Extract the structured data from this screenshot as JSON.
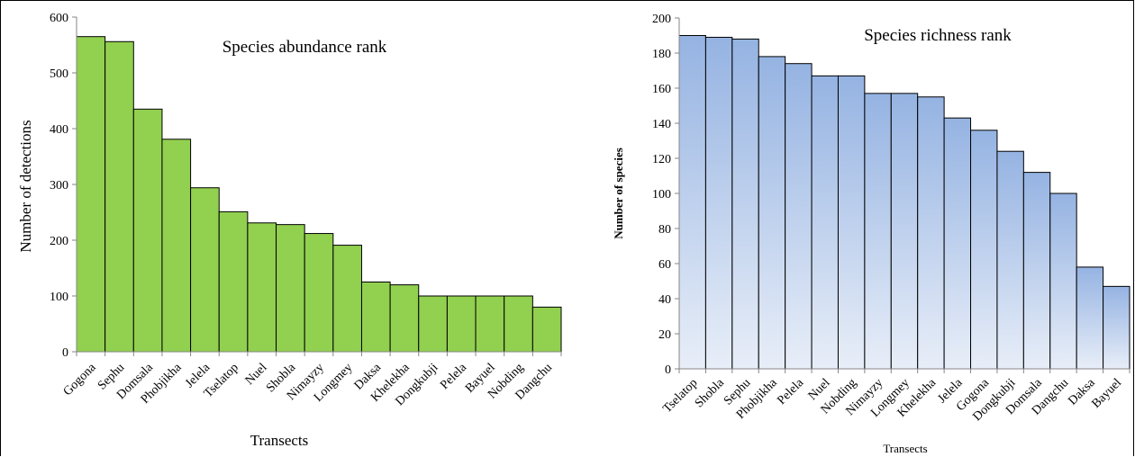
{
  "chart_data": [
    {
      "type": "bar",
      "title": "Species abundance rank",
      "xlabel": "Transects",
      "ylabel": "Number of detections",
      "ylim": [
        0,
        600
      ],
      "yticks": [
        0,
        100,
        200,
        300,
        400,
        500,
        600
      ],
      "categories": [
        "Gogona",
        "Sephu",
        "Domsala",
        "Phobjikha",
        "Jelela",
        "Tselatop",
        "Nuel",
        "Shobla",
        "Nimayzy",
        "Longmey",
        "Daksa",
        "Khelekha",
        "Dongkubji",
        "Pelela",
        "Bayuel",
        "Nobding",
        "Dangchu"
      ],
      "values": [
        565,
        556,
        435,
        381,
        294,
        251,
        231,
        228,
        212,
        191,
        125,
        120,
        100,
        100,
        100,
        100,
        80
      ],
      "bar_color": "#92d050",
      "grid": false,
      "legend": "none"
    },
    {
      "type": "bar",
      "title": "Species richness rank",
      "xlabel": "Transects",
      "ylabel": "Number of species",
      "ylim": [
        0,
        200
      ],
      "yticks": [
        0,
        20,
        40,
        60,
        80,
        100,
        120,
        140,
        160,
        180,
        200
      ],
      "categories": [
        "Tselatop",
        "Shobla",
        "Sephu",
        "Phobjikha",
        "Pelela",
        "Nuel",
        "Nobding",
        "Nimayzy",
        "Longmey",
        "Khelekha",
        "Jelela",
        "Gogona",
        "Dongkubji",
        "Domsala",
        "Dangchu",
        "Daksa",
        "Bayuel"
      ],
      "values": [
        190,
        189,
        188,
        178,
        174,
        167,
        167,
        157,
        157,
        155,
        143,
        136,
        124,
        112,
        100,
        58,
        47
      ],
      "bar_color_top": "#95b3e2",
      "bar_color_bottom": "#e8eef8",
      "grid": false,
      "legend": "none"
    }
  ]
}
